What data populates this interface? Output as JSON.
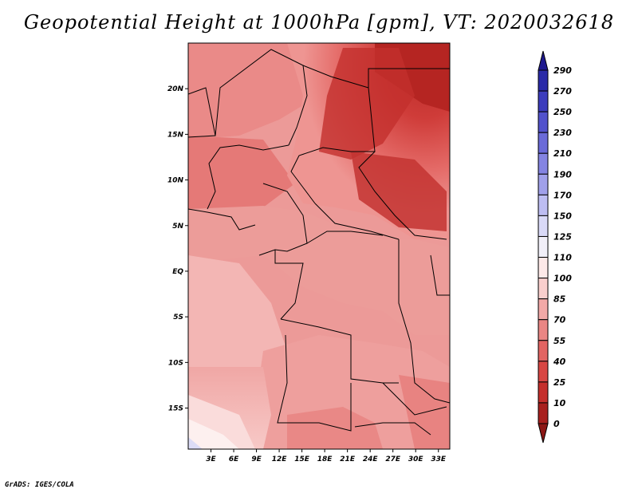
{
  "title": "Geopotential Height at 1000hPa [gpm], VT: 2020032618",
  "credit": "GrADS: IGES/COLA",
  "map": {
    "variable": "Geopotential Height at 1000hPa",
    "units": "gpm",
    "valid_time": "2020032618",
    "lon_ticks": [
      "3E",
      "6E",
      "9E",
      "12E",
      "15E",
      "18E",
      "21E",
      "24E",
      "27E",
      "30E",
      "33E"
    ],
    "lon_tick_values": [
      3,
      6,
      9,
      12,
      15,
      18,
      21,
      24,
      27,
      30,
      33
    ],
    "lat_ticks": [
      "20N",
      "15N",
      "10N",
      "5N",
      "EQ",
      "5S",
      "10S",
      "15S"
    ],
    "lat_tick_values": [
      20,
      15,
      10,
      5,
      0,
      -5,
      -10,
      -15
    ],
    "lon_range": [
      0,
      34.5
    ],
    "lat_range": [
      -19.5,
      25
    ]
  },
  "colorbar": {
    "levels": [
      "290",
      "270",
      "250",
      "230",
      "210",
      "190",
      "170",
      "150",
      "125",
      "110",
      "100",
      "85",
      "70",
      "55",
      "40",
      "25",
      "10",
      "0"
    ],
    "colors": [
      "#1f1a8f",
      "#2a2aa8",
      "#3c3cbd",
      "#5252cc",
      "#6a6ad8",
      "#8484e2",
      "#a0a0ea",
      "#bdbdf2",
      "#d9d9f7",
      "#f1eff8",
      "#fde9e8",
      "#f9cfcd",
      "#f2a9a7",
      "#ea8684",
      "#e26462",
      "#d84643",
      "#c52f2c",
      "#a8201e",
      "#8c1715"
    ]
  }
}
